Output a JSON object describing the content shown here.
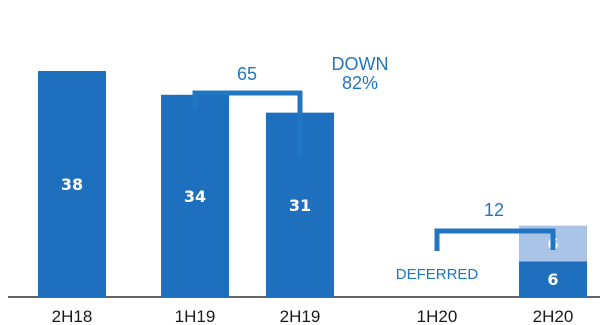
{
  "chart_data": {
    "type": "bar",
    "title": "",
    "xlabel": "",
    "ylabel": "",
    "ylim": [
      0,
      42
    ],
    "grid": false,
    "legend": "none",
    "categories": [
      "2H18",
      "1H19",
      "2H19",
      "1H20",
      "2H20"
    ],
    "series": [
      {
        "values": [
          38,
          34,
          31,
          0,
          6
        ],
        "color": "#1f6fbf"
      },
      {
        "values": [
          0,
          0,
          0,
          0,
          6
        ],
        "color": "#a9c4e6"
      }
    ],
    "bar_labels": [
      "38",
      "34",
      "31",
      "",
      "6"
    ],
    "stack_labels": [
      "",
      "",
      "",
      "",
      "6"
    ],
    "annotations": {
      "bracket_1": {
        "label": "65",
        "from": "1H19",
        "to": "2H19"
      },
      "down_label": [
        "DOWN",
        "82%"
      ],
      "bracket_2": {
        "label": "12",
        "from": "1H20",
        "to": "2H20"
      },
      "deferred": "DEFERRED"
    }
  },
  "colors": {
    "primary": "#1f6fbf",
    "light": "#a9c4e6",
    "annotation": "#2176c1",
    "axis": "#333333"
  }
}
